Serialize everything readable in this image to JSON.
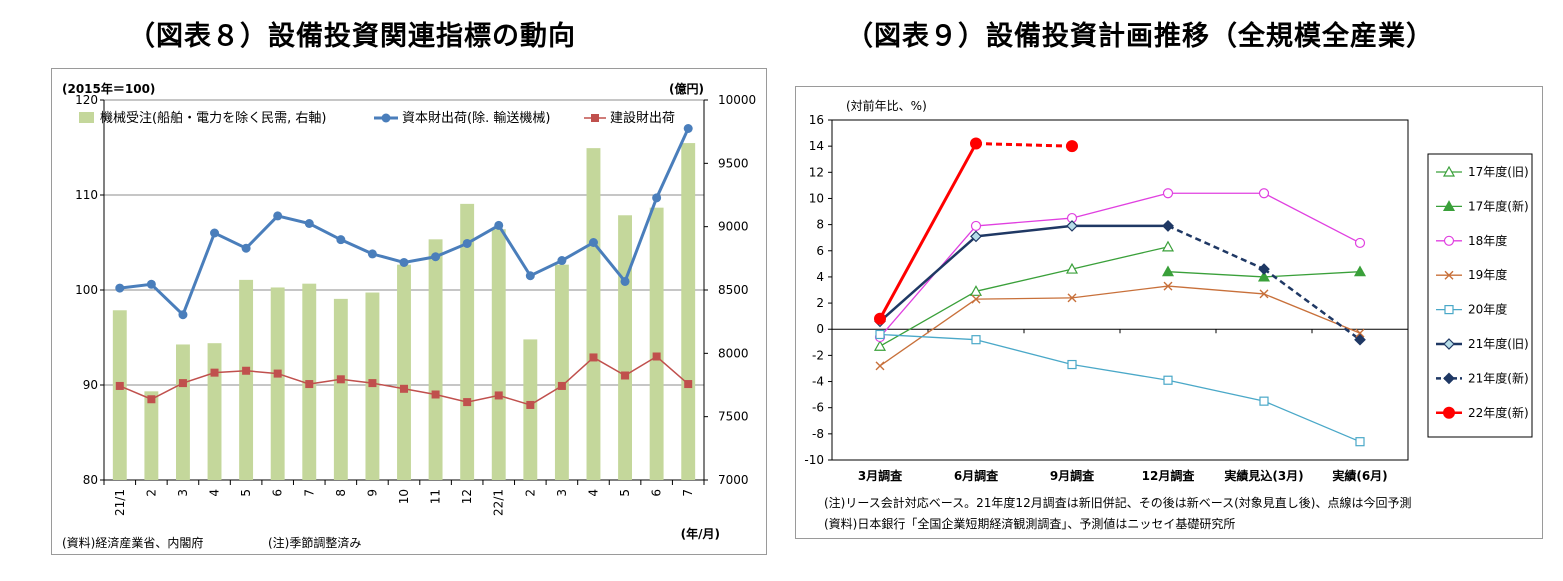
{
  "chart8": {
    "title": "（図表８）設備投資関連指標の動向",
    "left_axis_unit": "(2015年＝100)",
    "right_axis_unit": "(億円)",
    "x_axis_unit": "(年/月)",
    "source_note": "(資料)経済産業省、内閣府",
    "adjust_note": "(注)季節調整済み",
    "chart_data": {
      "type": "bar+line",
      "categories": [
        "21/1",
        "2",
        "3",
        "4",
        "5",
        "6",
        "7",
        "8",
        "9",
        "10",
        "11",
        "12",
        "22/1",
        "2",
        "3",
        "4",
        "5",
        "6",
        "7"
      ],
      "y_left": {
        "min": 80,
        "max": 120,
        "ticks": [
          80,
          90,
          100,
          110,
          120
        ]
      },
      "y_right": {
        "min": 7000,
        "max": 10000,
        "ticks": [
          7000,
          7500,
          8000,
          8500,
          9000,
          9500,
          10000
        ]
      },
      "grid": "horizontal",
      "legend_position": "top",
      "series": [
        {
          "name": "機械受注(船舶・電力を除く民需, 右軸)",
          "kind": "bar",
          "axis": "right",
          "color": "#c4d79b",
          "values": [
            8340,
            7700,
            8070,
            8080,
            8580,
            8520,
            8550,
            8430,
            8480,
            8700,
            8900,
            9180,
            8980,
            8110,
            8700,
            9620,
            9090,
            9150,
            9660
          ]
        },
        {
          "name": "資本財出荷(除. 輸送機械)",
          "kind": "line",
          "axis": "left",
          "color": "#4a7ebb",
          "marker": "circle",
          "values": [
            100.2,
            100.6,
            97.4,
            106.0,
            104.4,
            107.8,
            107.0,
            105.3,
            103.8,
            102.9,
            103.5,
            104.9,
            106.8,
            101.5,
            103.1,
            105.0,
            100.9,
            109.7,
            117.0
          ]
        },
        {
          "name": "建設財出荷",
          "kind": "line",
          "axis": "left",
          "color": "#c0504d",
          "marker": "square",
          "values": [
            89.9,
            88.5,
            90.2,
            91.3,
            91.5,
            91.2,
            90.1,
            90.6,
            90.2,
            89.6,
            89.0,
            88.2,
            88.9,
            87.9,
            89.9,
            92.9,
            91.0,
            93.0,
            90.1
          ]
        }
      ]
    }
  },
  "chart9": {
    "title": "（図表９）設備投資計画推移（全規模全産業）",
    "y_axis_unit": "(対前年比、%)",
    "note": "(注)リース会計対応ベース。21年度12月調査は新旧併記、その後は新ベース(対象見直し後)、点線は今回予測",
    "source": "(資料)日本銀行「全国企業短期経済観測調査」、予測値はニッセイ基礎研究所",
    "chart_data": {
      "type": "line",
      "categories": [
        "3月調査",
        "6月調査",
        "9月調査",
        "12月調査",
        "実績見込(3月)",
        "実績(6月)"
      ],
      "y": {
        "min": -10,
        "max": 16,
        "ticks": [
          -10,
          -8,
          -6,
          -4,
          -2,
          0,
          2,
          4,
          6,
          8,
          10,
          12,
          14,
          16
        ]
      },
      "legend_position": "right",
      "series": [
        {
          "name": "17年度(旧)",
          "color": "#3aa03a",
          "marker": "triangle-open",
          "dashed": false,
          "values": [
            -1.3,
            2.9,
            4.6,
            6.3,
            null,
            null
          ]
        },
        {
          "name": "17年度(新)",
          "color": "#3aa03a",
          "marker": "triangle-filled",
          "dashed": false,
          "values": [
            null,
            null,
            null,
            4.4,
            4.0,
            4.4
          ]
        },
        {
          "name": "18年度",
          "color": "#e040e0",
          "marker": "circle-open",
          "dashed": false,
          "values": [
            -0.6,
            7.9,
            8.5,
            10.4,
            10.4,
            6.6
          ]
        },
        {
          "name": "19年度",
          "color": "#c8703a",
          "marker": "x",
          "dashed": false,
          "values": [
            -2.8,
            2.3,
            2.4,
            3.3,
            2.7,
            -0.3
          ]
        },
        {
          "name": "20年度",
          "color": "#4aa8c8",
          "marker": "square-open",
          "dashed": false,
          "values": [
            -0.4,
            -0.8,
            -2.7,
            -3.9,
            -5.5,
            -8.6
          ]
        },
        {
          "name": "21年度(旧)",
          "color": "#1f3864",
          "marker": "diamond-open",
          "dashed": false,
          "values": [
            0.6,
            7.1,
            7.9,
            7.9,
            null,
            null
          ]
        },
        {
          "name": "21年度(新)",
          "color": "#1f3864",
          "marker": "diamond-filled",
          "dashed": true,
          "values": [
            null,
            null,
            null,
            7.9,
            4.6,
            -0.8
          ]
        },
        {
          "name": "22年度(新)",
          "color": "#ff0000",
          "marker": "circle-filled",
          "dashed": false,
          "values": [
            0.8,
            14.2,
            14.0,
            null,
            null,
            null
          ],
          "forecast_from_index": 1
        }
      ]
    }
  }
}
